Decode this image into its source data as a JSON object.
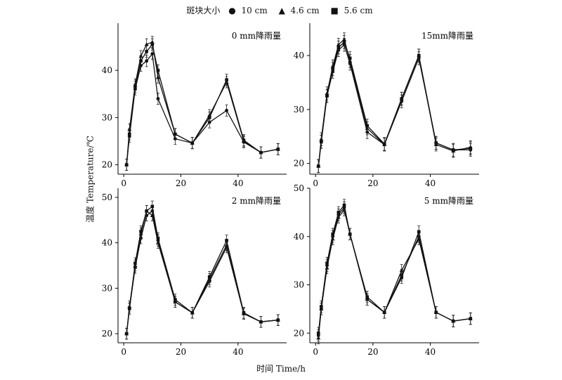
{
  "legend": {
    "title": "斑块大小",
    "items": [
      {
        "marker": "circle",
        "label": "10 cm"
      },
      {
        "marker": "triangle",
        "label": "4.6 cm"
      },
      {
        "marker": "square",
        "label": "5.6 cm"
      }
    ]
  },
  "ylabel": "温度 Temperature/℃",
  "xlabel": "时间 Time/h",
  "chart_data": [
    {
      "type": "line",
      "title": "0 mm降雨量",
      "x": [
        1,
        2,
        4,
        6,
        8,
        10,
        12,
        18,
        24,
        30,
        36,
        42,
        48,
        54
      ],
      "xticks": [
        0,
        20,
        40
      ],
      "ylim": [
        18,
        50
      ],
      "yticks": [
        20,
        30,
        40
      ],
      "series": [
        {
          "name": "10 cm",
          "marker": "circle",
          "values": [
            20.0,
            26.0,
            36.0,
            41.0,
            42.0,
            43.5,
            34.0,
            25.5,
            24.6,
            29.0,
            31.5,
            24.8,
            22.6,
            23.3
          ]
        },
        {
          "name": "4.6 cm",
          "marker": "triangle",
          "values": [
            20.0,
            27.5,
            37.0,
            43.0,
            45.5,
            46.0,
            38.5,
            26.5,
            24.6,
            30.5,
            37.5,
            25.0,
            22.6,
            23.3
          ]
        },
        {
          "name": "5.6 cm",
          "marker": "square",
          "values": [
            20.0,
            26.5,
            36.5,
            42.0,
            44.0,
            45.5,
            40.0,
            26.5,
            24.6,
            30.0,
            38.0,
            25.2,
            22.6,
            23.3
          ]
        }
      ]
    },
    {
      "type": "line",
      "title": "15mm降雨量",
      "x": [
        1,
        2,
        4,
        6,
        8,
        10,
        12,
        18,
        24,
        30,
        36,
        42,
        48,
        54
      ],
      "xticks": [
        0,
        20,
        40
      ],
      "ylim": [
        18,
        46
      ],
      "yticks": [
        20,
        30,
        40
      ],
      "series": [
        {
          "name": "10 cm",
          "marker": "circle",
          "values": [
            19.5,
            24.0,
            32.5,
            37.0,
            41.0,
            42.0,
            38.5,
            25.8,
            23.5,
            31.5,
            39.5,
            23.8,
            22.5,
            22.5
          ]
        },
        {
          "name": "4.6 cm",
          "marker": "triangle",
          "values": [
            19.5,
            24.5,
            33.0,
            38.0,
            42.0,
            43.0,
            39.0,
            26.5,
            23.5,
            32.0,
            40.0,
            23.5,
            22.3,
            23.0
          ]
        },
        {
          "name": "5.6 cm",
          "marker": "square",
          "values": [
            19.5,
            24.0,
            32.5,
            37.5,
            41.5,
            42.5,
            39.5,
            27.0,
            23.6,
            32.0,
            40.0,
            23.8,
            22.5,
            22.8
          ]
        }
      ]
    },
    {
      "type": "line",
      "title": "2 mm降雨量",
      "x": [
        1,
        2,
        4,
        6,
        8,
        10,
        12,
        18,
        24,
        30,
        36,
        42,
        48,
        54
      ],
      "xticks": [
        0,
        20,
        40
      ],
      "ylim": [
        18,
        52
      ],
      "yticks": [
        20,
        30,
        40,
        50
      ],
      "series": [
        {
          "name": "10 cm",
          "marker": "circle",
          "values": [
            20.0,
            25.5,
            34.5,
            41.0,
            46.0,
            47.0,
            40.5,
            27.0,
            24.6,
            31.5,
            39.0,
            24.4,
            22.6,
            23.0
          ]
        },
        {
          "name": "4.6 cm",
          "marker": "triangle",
          "values": [
            20.0,
            26.0,
            35.0,
            42.0,
            47.0,
            46.0,
            40.0,
            27.0,
            24.6,
            32.0,
            39.5,
            24.4,
            22.6,
            23.0
          ]
        },
        {
          "name": "5.6 cm",
          "marker": "square",
          "values": [
            20.0,
            25.5,
            35.5,
            42.5,
            47.0,
            48.0,
            41.0,
            27.5,
            24.6,
            32.5,
            40.5,
            24.6,
            22.6,
            23.0
          ]
        }
      ]
    },
    {
      "type": "line",
      "title": "5 mm降雨量",
      "x": [
        1,
        2,
        4,
        6,
        8,
        10,
        12,
        18,
        24,
        30,
        36,
        42,
        48,
        54
      ],
      "xticks": [
        0,
        20,
        40
      ],
      "ylim": [
        18,
        50
      ],
      "yticks": [
        20,
        30,
        40,
        50
      ],
      "series": [
        {
          "name": "10 cm",
          "marker": "circle",
          "values": [
            19.5,
            25.0,
            34.0,
            40.0,
            44.5,
            46.0,
            40.5,
            27.0,
            24.3,
            32.0,
            40.0,
            24.3,
            22.5,
            23.0
          ]
        },
        {
          "name": "4.6 cm",
          "marker": "triangle",
          "values": [
            19.0,
            25.0,
            33.5,
            39.5,
            44.0,
            45.5,
            40.5,
            27.0,
            24.3,
            33.0,
            39.5,
            24.3,
            22.5,
            23.0
          ]
        },
        {
          "name": "5.6 cm",
          "marker": "square",
          "values": [
            20.0,
            25.5,
            34.5,
            40.5,
            45.0,
            46.5,
            40.5,
            27.5,
            24.3,
            31.5,
            41.0,
            24.3,
            22.5,
            23.0
          ]
        }
      ]
    }
  ]
}
